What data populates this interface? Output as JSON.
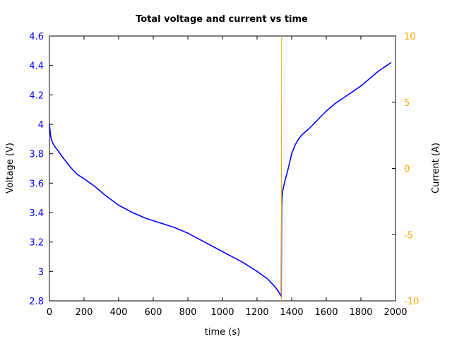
{
  "chart_data": {
    "type": "line",
    "title": "Total voltage and current vs time",
    "xlabel": "time (s)",
    "ylabel_left": "Voltage (V)",
    "ylabel_right": "Current (A)",
    "xlim": [
      0,
      2000
    ],
    "ylim_left": [
      2.8,
      4.6
    ],
    "ylim_right": [
      -10,
      10
    ],
    "xticks": [
      "0",
      "200",
      "400",
      "600",
      "800",
      "1000",
      "1200",
      "1400",
      "1600",
      "1800",
      "2000"
    ],
    "yticks_left": [
      "2.8",
      "3",
      "3.2",
      "3.4",
      "3.6",
      "3.8",
      "4",
      "4.2",
      "4.4",
      "4.6"
    ],
    "yticks_right": [
      "-10",
      "-5",
      "0",
      "5",
      "10"
    ],
    "grid": false,
    "colors": {
      "voltage": "#0000ff",
      "current": "#ffa500",
      "left_axis": "#0000ff",
      "right_axis": "#ffa500"
    },
    "series": [
      {
        "axis": "left",
        "x": [
          0,
          5,
          10,
          20,
          30,
          50,
          80,
          120,
          160,
          200,
          260,
          320,
          400,
          480,
          560,
          640,
          720,
          800,
          880,
          960,
          1040,
          1120,
          1200,
          1260,
          1300,
          1320,
          1335,
          1340,
          1342,
          1345,
          1350,
          1360,
          1380,
          1400,
          1420,
          1440,
          1460,
          1500,
          1550,
          1600,
          1650,
          1700,
          1750,
          1800,
          1850,
          1900,
          1950,
          1975
        ],
        "y": [
          4.0,
          3.94,
          3.9,
          3.87,
          3.85,
          3.82,
          3.77,
          3.71,
          3.66,
          3.63,
          3.58,
          3.52,
          3.45,
          3.4,
          3.36,
          3.33,
          3.3,
          3.26,
          3.21,
          3.16,
          3.11,
          3.06,
          3.0,
          2.95,
          2.9,
          2.87,
          2.84,
          2.83,
          3.45,
          3.52,
          3.56,
          3.61,
          3.7,
          3.8,
          3.86,
          3.9,
          3.93,
          3.97,
          4.03,
          4.09,
          4.14,
          4.18,
          4.22,
          4.26,
          4.31,
          4.36,
          4.4,
          4.42
        ]
      },
      {
        "axis": "right",
        "x": [
          1340,
          1342
        ],
        "y": [
          -10,
          10
        ]
      }
    ]
  }
}
